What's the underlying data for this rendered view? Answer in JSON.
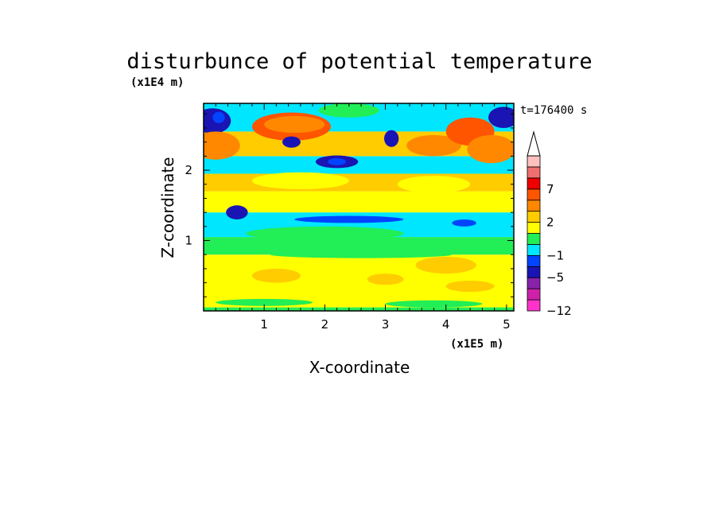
{
  "chart_data": {
    "type": "heatmap",
    "title": "disturbunce of potential temperature",
    "xlabel": "X-coordinate",
    "ylabel": "Z-coordinate",
    "x_unit": "(x1E5 m)",
    "y_unit": "(x1E4 m)",
    "time_label": "t=176400 s",
    "xlim": [
      0,
      5.12
    ],
    "ylim": [
      0,
      2.95
    ],
    "x_ticks": [
      1,
      2,
      3,
      4,
      5
    ],
    "y_ticks": [
      1,
      2
    ],
    "colorbar": {
      "tick_labels": [
        "7",
        "2",
        "−1",
        "−5",
        "−12"
      ],
      "levels": [
        {
          "color": "#ff33cc",
          "value": -12
        },
        {
          "color": "#cc22aa",
          "value": -10
        },
        {
          "color": "#8822aa",
          "value": -7
        },
        {
          "color": "#1a14b4",
          "value": -5
        },
        {
          "color": "#0044ff",
          "value": -3
        },
        {
          "color": "#00e6ff",
          "value": -1
        },
        {
          "color": "#22ee55",
          "value": 0
        },
        {
          "color": "#ffff00",
          "value": 1
        },
        {
          "color": "#ffcc00",
          "value": 2
        },
        {
          "color": "#ff8800",
          "value": 4
        },
        {
          "color": "#ff5500",
          "value": 6
        },
        {
          "color": "#ee0000",
          "value": 7
        },
        {
          "color": "#f07070",
          "value": 9
        },
        {
          "color": "#ffc0c0",
          "value": 11
        }
      ]
    },
    "field_bands": [
      {
        "z0": 0.0,
        "z1": 0.05,
        "color": "#22ee55"
      },
      {
        "z0": 0.05,
        "z1": 0.8,
        "color": "#ffff00"
      },
      {
        "z0": 0.8,
        "z1": 1.05,
        "color": "#22ee55"
      },
      {
        "z0": 1.05,
        "z1": 1.4,
        "color": "#00e6ff"
      },
      {
        "z0": 1.4,
        "z1": 1.7,
        "color": "#ffff00"
      },
      {
        "z0": 1.7,
        "z1": 1.95,
        "color": "#ffcc00"
      },
      {
        "z0": 1.95,
        "z1": 2.2,
        "color": "#00e6ff"
      },
      {
        "z0": 2.2,
        "z1": 2.55,
        "color": "#ffcc00"
      },
      {
        "z0": 2.55,
        "z1": 2.95,
        "color": "#00e6ff"
      }
    ],
    "field_blobs": [
      {
        "x": 0.15,
        "z": 2.7,
        "rx": 0.3,
        "rz": 0.18,
        "color": "#1a14b4"
      },
      {
        "x": 0.25,
        "z": 2.75,
        "rx": 0.1,
        "rz": 0.08,
        "color": "#0044ff"
      },
      {
        "x": 0.2,
        "z": 2.35,
        "rx": 0.4,
        "rz": 0.2,
        "color": "#ff8800"
      },
      {
        "x": 1.45,
        "z": 2.62,
        "rx": 0.65,
        "rz": 0.2,
        "color": "#ff5500"
      },
      {
        "x": 1.5,
        "z": 2.65,
        "rx": 0.5,
        "rz": 0.12,
        "color": "#ff8800"
      },
      {
        "x": 1.45,
        "z": 2.4,
        "rx": 0.15,
        "rz": 0.08,
        "color": "#1a14b4"
      },
      {
        "x": 2.2,
        "z": 2.12,
        "rx": 0.35,
        "rz": 0.09,
        "color": "#1a14b4"
      },
      {
        "x": 2.2,
        "z": 2.12,
        "rx": 0.15,
        "rz": 0.05,
        "color": "#0044ff"
      },
      {
        "x": 3.1,
        "z": 2.45,
        "rx": 0.12,
        "rz": 0.12,
        "color": "#1a14b4"
      },
      {
        "x": 3.8,
        "z": 2.35,
        "rx": 0.45,
        "rz": 0.15,
        "color": "#ff8800"
      },
      {
        "x": 4.4,
        "z": 2.55,
        "rx": 0.4,
        "rz": 0.2,
        "color": "#ff5500"
      },
      {
        "x": 4.75,
        "z": 2.3,
        "rx": 0.4,
        "rz": 0.2,
        "color": "#ff8800"
      },
      {
        "x": 4.95,
        "z": 2.75,
        "rx": 0.25,
        "rz": 0.15,
        "color": "#1a14b4"
      },
      {
        "x": 2.4,
        "z": 2.85,
        "rx": 0.5,
        "rz": 0.1,
        "color": "#22ee55"
      },
      {
        "x": 1.6,
        "z": 1.85,
        "rx": 0.8,
        "rz": 0.12,
        "color": "#ffff00"
      },
      {
        "x": 3.8,
        "z": 1.8,
        "rx": 0.6,
        "rz": 0.12,
        "color": "#ffff00"
      },
      {
        "x": 0.55,
        "z": 1.4,
        "rx": 0.18,
        "rz": 0.1,
        "color": "#1a14b4"
      },
      {
        "x": 2.4,
        "z": 1.3,
        "rx": 0.9,
        "rz": 0.05,
        "color": "#0044ff"
      },
      {
        "x": 4.3,
        "z": 1.25,
        "rx": 0.2,
        "rz": 0.05,
        "color": "#0044ff"
      },
      {
        "x": 2.0,
        "z": 1.1,
        "rx": 1.3,
        "rz": 0.1,
        "color": "#22ee55"
      },
      {
        "x": 1.2,
        "z": 0.5,
        "rx": 0.4,
        "rz": 0.1,
        "color": "#ffcc00"
      },
      {
        "x": 3.0,
        "z": 0.45,
        "rx": 0.3,
        "rz": 0.08,
        "color": "#ffcc00"
      },
      {
        "x": 4.4,
        "z": 0.35,
        "rx": 0.4,
        "rz": 0.08,
        "color": "#ffcc00"
      },
      {
        "x": 4.0,
        "z": 0.65,
        "rx": 0.5,
        "rz": 0.12,
        "color": "#ffcc00"
      },
      {
        "x": 2.6,
        "z": 0.8,
        "rx": 1.5,
        "rz": 0.05,
        "color": "#22ee55"
      },
      {
        "x": 1.0,
        "z": 0.12,
        "rx": 0.8,
        "rz": 0.05,
        "color": "#22ee55"
      },
      {
        "x": 3.8,
        "z": 0.1,
        "rx": 0.8,
        "rz": 0.05,
        "color": "#22ee55"
      }
    ]
  }
}
